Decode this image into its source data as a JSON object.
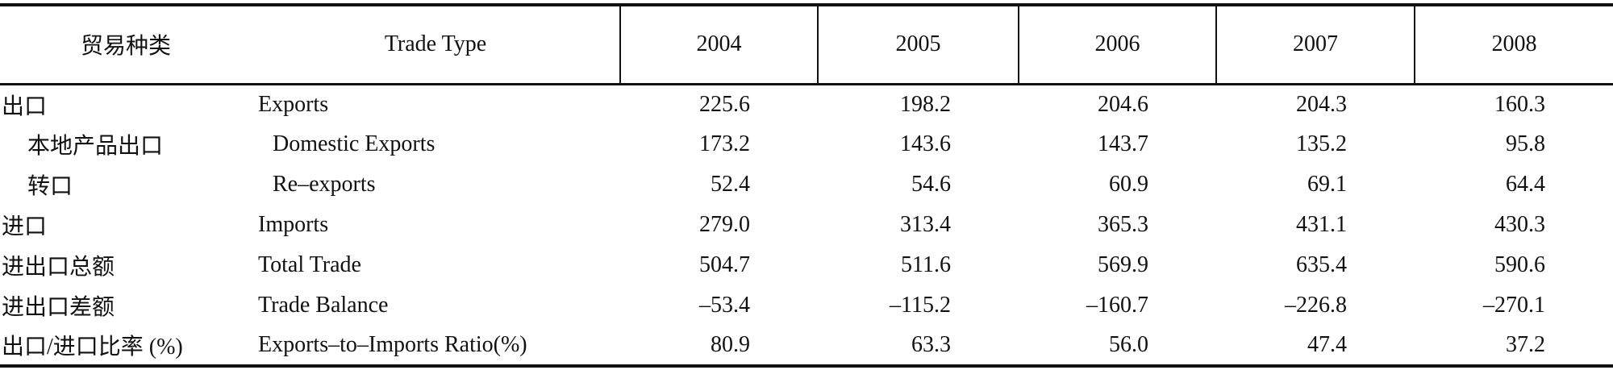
{
  "table": {
    "header": [
      "贸易种类",
      "Trade Type",
      "2004",
      "2005",
      "2006",
      "2007",
      "2008"
    ],
    "rows": [
      [
        "出口",
        "Exports",
        "225.6",
        "198.2",
        "204.6",
        "204.3",
        "160.3"
      ],
      [
        "本地产品出口",
        "Domestic Exports",
        "173.2",
        "143.6",
        "143.7",
        "135.2",
        "95.8"
      ],
      [
        "转口",
        "Re–exports",
        "52.4",
        "54.6",
        "60.9",
        "69.1",
        "64.4"
      ],
      [
        "进口",
        "Imports",
        "279.0",
        "313.4",
        "365.3",
        "431.1",
        "430.3"
      ],
      [
        "进出口总额",
        "Total Trade",
        "504.7",
        "511.6",
        "569.9",
        "635.4",
        "590.6"
      ],
      [
        "进出口差额",
        "Trade Balance",
        "–53.4",
        "–115.2",
        "–160.7",
        "–226.8",
        "–270.1"
      ],
      [
        "出口/进口比率 (%)",
        "Exports–to–Imports Ratio(%)",
        "80.9",
        "63.3",
        "56.0",
        "47.4",
        "37.2"
      ]
    ],
    "indented_rows": [
      1,
      2
    ]
  }
}
